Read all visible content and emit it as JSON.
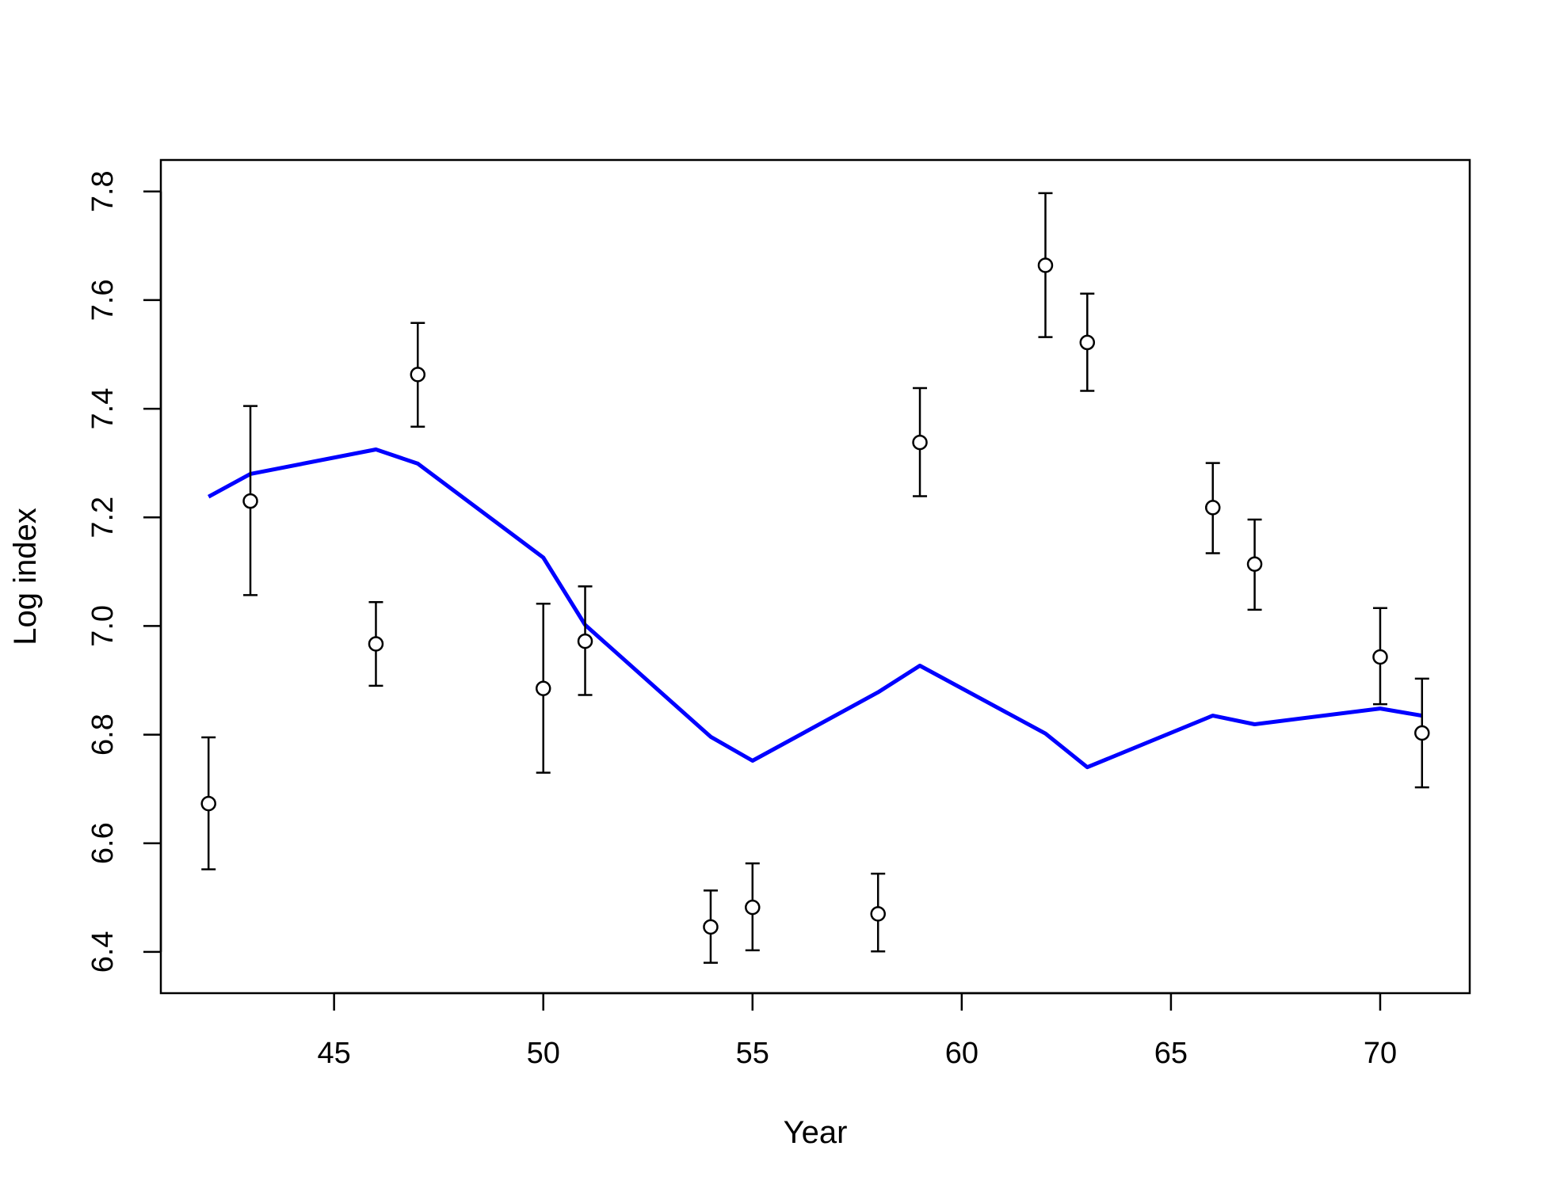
{
  "chart_data": {
    "type": "scatter",
    "title": "",
    "xlabel": "Year",
    "ylabel": "Log index",
    "xlim": [
      40.86,
      72.14
    ],
    "ylim": [
      6.324,
      7.858
    ],
    "x_ticks": [
      45,
      50,
      55,
      60,
      65,
      70
    ],
    "y_ticks": [
      6.4,
      6.6,
      6.8,
      7.0,
      7.2,
      7.4,
      7.6,
      7.8
    ],
    "x_tick_labels": [
      "45",
      "50",
      "55",
      "60",
      "65",
      "70"
    ],
    "y_tick_labels": [
      "6.4",
      "6.6",
      "6.8",
      "7.0",
      "7.2",
      "7.4",
      "7.6",
      "7.8"
    ],
    "grid": false,
    "colors": {
      "fitted_line": "#0000ff",
      "points": "#000000",
      "frame": "#000000"
    },
    "series": [
      {
        "kind": "points_with_error_bars",
        "x": [
          42,
          43,
          46,
          47,
          50,
          51,
          54,
          55,
          58,
          59,
          62,
          63,
          66,
          67,
          70,
          71
        ],
        "y": [
          6.673,
          7.23,
          6.967,
          7.463,
          6.885,
          6.972,
          6.446,
          6.482,
          6.47,
          7.338,
          7.664,
          7.522,
          7.218,
          7.114,
          6.943,
          6.803
        ],
        "lower": [
          6.552,
          7.057,
          6.89,
          7.367,
          6.73,
          6.873,
          6.38,
          6.403,
          6.401,
          7.239,
          7.532,
          7.433,
          7.134,
          7.03,
          6.856,
          6.703
        ],
        "upper": [
          6.795,
          7.405,
          7.044,
          7.558,
          7.041,
          7.073,
          6.513,
          6.563,
          6.544,
          7.438,
          7.797,
          7.612,
          7.3,
          7.196,
          7.033,
          6.903
        ]
      },
      {
        "kind": "line",
        "x": [
          42,
          43,
          46,
          47,
          50,
          51,
          54,
          55,
          58,
          59,
          62,
          63,
          66,
          67,
          70,
          71
        ],
        "y": [
          7.238,
          7.28,
          7.325,
          7.299,
          7.126,
          7.002,
          6.796,
          6.752,
          6.878,
          6.927,
          6.802,
          6.74,
          6.835,
          6.819,
          6.848,
          6.835
        ]
      }
    ]
  }
}
